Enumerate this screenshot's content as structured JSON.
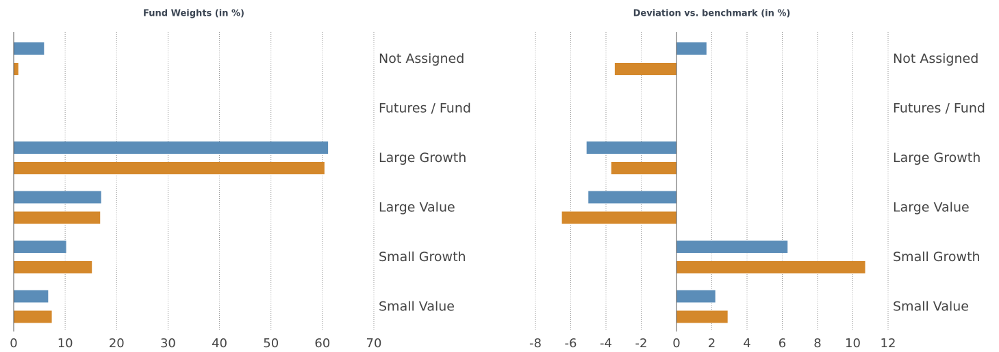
{
  "chart_data": [
    {
      "type": "bar",
      "orientation": "horizontal",
      "title": "Fund Weights (in %)",
      "categories": [
        "Not Assigned",
        "Futures / Fund",
        "Large Growth",
        "Large Value",
        "Small Growth",
        "Small Value"
      ],
      "series": [
        {
          "color": "#5b8db8",
          "values": [
            5.9,
            0,
            61.1,
            17.0,
            10.2,
            6.7
          ]
        },
        {
          "color": "#d4882b",
          "values": [
            0.9,
            0,
            60.4,
            16.8,
            15.2,
            7.4
          ]
        }
      ],
      "xlim": [
        0,
        70
      ],
      "xticks": [
        0,
        10,
        20,
        30,
        40,
        50,
        60,
        70
      ],
      "grid": true
    },
    {
      "type": "bar",
      "orientation": "horizontal",
      "title": "Deviation vs. benchmark (in %)",
      "categories": [
        "Not Assigned",
        "Futures / Fund",
        "Large Growth",
        "Large Value",
        "Small Growth",
        "Small Value"
      ],
      "series": [
        {
          "color": "#5b8db8",
          "values": [
            1.7,
            0,
            -5.1,
            -5.0,
            6.3,
            2.2
          ]
        },
        {
          "color": "#d4882b",
          "values": [
            -3.5,
            0,
            -3.7,
            -6.5,
            10.7,
            2.9
          ]
        }
      ],
      "xlim": [
        -8,
        12
      ],
      "xticks": [
        -8,
        -6,
        -4,
        -2,
        0,
        2,
        4,
        6,
        8,
        10,
        12
      ],
      "grid": true
    }
  ]
}
